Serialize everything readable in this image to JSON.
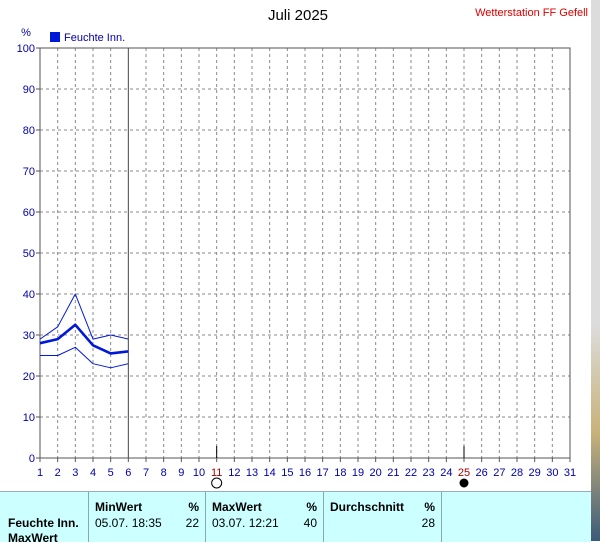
{
  "title": "Juli 2025",
  "station": "Wetterstation FF Gefell",
  "colors": {
    "series_main": "#0018d8",
    "series_band": "#0018d8",
    "station_text": "#e00000",
    "grid": "#8a8a8a",
    "stats_bg": "#ccffff"
  },
  "chart_data": {
    "type": "line",
    "title": "Juli 2025",
    "ylabel": "%",
    "xlabel": "",
    "xlim": [
      1,
      31
    ],
    "ylim": [
      0,
      100
    ],
    "x_ticks": [
      "1",
      "2",
      "3",
      "4",
      "5",
      "6",
      "7",
      "8",
      "9",
      "10",
      "11",
      "12",
      "13",
      "14",
      "15",
      "16",
      "17",
      "18",
      "19",
      "20",
      "21",
      "22",
      "23",
      "24",
      "25",
      "26",
      "27",
      "28",
      "29",
      "30",
      "31"
    ],
    "y_ticks": [
      "0",
      "10",
      "20",
      "30",
      "40",
      "50",
      "60",
      "70",
      "80",
      "90",
      "100"
    ],
    "grid": true,
    "legend": {
      "position": "top-left",
      "entries": [
        "Feuchte Inn."
      ]
    },
    "series": [
      {
        "name": "Feuchte Inn.",
        "role": "mean",
        "x": [
          1,
          2,
          3,
          4,
          5,
          6
        ],
        "y": [
          28,
          29,
          32.5,
          27.5,
          25.5,
          26
        ]
      },
      {
        "role": "max",
        "x": [
          1,
          2,
          3,
          4,
          5,
          6
        ],
        "y": [
          29,
          32,
          40,
          29,
          30,
          29
        ]
      },
      {
        "role": "min",
        "x": [
          1,
          2,
          3,
          4,
          5,
          6
        ],
        "y": [
          25,
          25,
          27,
          23,
          22,
          23
        ]
      }
    ],
    "current_day": 6,
    "moon_phases": [
      {
        "day": 11,
        "phase": "full-moon-icon"
      },
      {
        "day": 25,
        "phase": "new-moon-icon"
      }
    ]
  },
  "stats": {
    "headers": {
      "min": "MinWert",
      "min_unit": "%",
      "max": "MaxWert",
      "max_unit": "%",
      "avg": "Durchschnitt",
      "avg_unit": "%"
    },
    "row_label": "Feuchte Inn.",
    "min_date": "05.07.  18:35",
    "min_value": "22",
    "max_date": "03.07.  12:21",
    "max_value": "40",
    "avg_value": "28",
    "next_row_label": "MaxWert"
  }
}
